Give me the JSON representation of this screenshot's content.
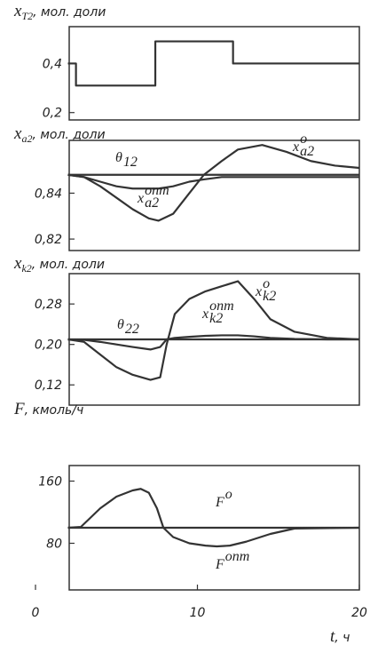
{
  "chart_data": [
    {
      "type": "line",
      "ylabel": {
        "text": "x",
        "sub": "T2",
        "unit": ", мол. доли"
      },
      "xlim": [
        0,
        20
      ],
      "ylim": [
        0.17,
        0.55
      ],
      "yticks": [
        {
          "value": 0.2,
          "label": "0,2"
        },
        {
          "value": 0.4,
          "label": "0,4"
        }
      ],
      "x": [
        2,
        2.5,
        2.5,
        7.4,
        7.4,
        12.2,
        12.2,
        20
      ],
      "series": [
        {
          "color": "#333333",
          "values": [
            0.4,
            0.4,
            0.31,
            0.31,
            0.49,
            0.49,
            0.4,
            0.4
          ]
        }
      ]
    },
    {
      "type": "line",
      "ylabel": {
        "text": "x",
        "sub": "a2",
        "unit": ", мол. доли"
      },
      "xlim": [
        0,
        20
      ],
      "ylim": [
        0.815,
        0.863
      ],
      "yticks": [
        {
          "value": 0.82,
          "label": "0,82"
        },
        {
          "value": 0.84,
          "label": "0,84"
        }
      ],
      "x": [
        2,
        3,
        4,
        5,
        6,
        7,
        7.6,
        8.5,
        9.5,
        10.4,
        11.5,
        12.5,
        14,
        15.5,
        17,
        18.5,
        20
      ],
      "series": [
        {
          "name": {
            "text": "θ",
            "sub": "12"
          },
          "color": "#333333",
          "values": [
            0.848,
            0.848,
            0.848,
            0.848,
            0.848,
            0.848,
            0.848,
            0.848,
            0.848,
            0.848,
            0.848,
            0.848,
            0.848,
            0.848,
            0.848,
            0.848,
            0.848
          ]
        },
        {
          "name": {
            "text": "x",
            "sub": "a2",
            "sup": "o"
          },
          "color": "#333333",
          "values": [
            0.848,
            0.847,
            0.843,
            0.838,
            0.833,
            0.829,
            0.828,
            0.831,
            0.84,
            0.848,
            0.854,
            0.859,
            0.861,
            0.858,
            0.854,
            0.852,
            0.851
          ]
        },
        {
          "name": {
            "text": "x",
            "sub": "a2",
            "sup": "опт"
          },
          "color": "#333333",
          "values": [
            0.848,
            0.847,
            0.845,
            0.843,
            0.842,
            0.842,
            0.842,
            0.843,
            0.845,
            0.846,
            0.847,
            0.847,
            0.847,
            0.847,
            0.847,
            0.847,
            0.847
          ]
        }
      ]
    },
    {
      "type": "line",
      "ylabel": {
        "text": "x",
        "sub": "k2",
        "unit": ", мол. доли"
      },
      "xlim": [
        0,
        20
      ],
      "ylim": [
        0.08,
        0.34
      ],
      "yticks": [
        {
          "value": 0.12,
          "label": "0,12"
        },
        {
          "value": 0.2,
          "label": "0,20"
        },
        {
          "value": 0.28,
          "label": "0,28"
        }
      ],
      "x": [
        2,
        3,
        4,
        5,
        6,
        7.1,
        7.7,
        8.1,
        8.6,
        9.5,
        10.5,
        11.5,
        12.5,
        13.5,
        14.5,
        16,
        18,
        20
      ],
      "series": [
        {
          "name": {
            "text": "θ",
            "sub": "22"
          },
          "color": "#333333",
          "values": [
            0.21,
            0.21,
            0.21,
            0.21,
            0.21,
            0.21,
            0.21,
            0.21,
            0.21,
            0.21,
            0.21,
            0.21,
            0.21,
            0.21,
            0.21,
            0.21,
            0.21,
            0.21
          ]
        },
        {
          "name": {
            "text": "x",
            "sub": "k2",
            "sup": "o"
          },
          "color": "#333333",
          "values": [
            0.21,
            0.205,
            0.18,
            0.155,
            0.14,
            0.13,
            0.135,
            0.2,
            0.26,
            0.29,
            0.305,
            0.315,
            0.325,
            0.29,
            0.25,
            0.225,
            0.213,
            0.21
          ]
        },
        {
          "name": {
            "text": "x",
            "sub": "k2",
            "sup": "опт"
          },
          "color": "#333333",
          "values": [
            0.21,
            0.209,
            0.205,
            0.2,
            0.195,
            0.19,
            0.195,
            0.21,
            0.213,
            0.215,
            0.217,
            0.218,
            0.218,
            0.216,
            0.213,
            0.211,
            0.21,
            0.21
          ]
        }
      ]
    },
    {
      "type": "line",
      "ylabel": {
        "text": "F",
        "unit": ", кмоль/ч"
      },
      "xlabel": {
        "text": "t",
        "unit": ", ч"
      },
      "xlim": [
        0,
        20
      ],
      "ylim": [
        20,
        180
      ],
      "xticks": [
        0,
        10,
        20
      ],
      "yticks": [
        80,
        160
      ],
      "x": [
        2,
        2.8,
        4,
        5,
        6,
        6.5,
        7,
        7.5,
        7.9,
        8.5,
        9.5,
        10.5,
        11.2,
        12,
        13,
        14.5,
        16,
        20
      ],
      "series": [
        {
          "name": {
            "text": "F",
            "sup": "o"
          },
          "color": "#333333",
          "values": [
            100,
            100,
            100,
            100,
            100,
            100,
            100,
            100,
            100,
            100,
            100,
            100,
            100,
            100,
            100,
            100,
            100,
            100
          ]
        },
        {
          "name": {
            "text": "F",
            "sup": "опт"
          },
          "color": "#333333",
          "values": [
            100,
            101,
            125,
            140,
            148,
            150,
            145,
            125,
            100,
            88,
            80,
            77,
            76,
            77,
            82,
            92,
            99,
            100
          ]
        }
      ]
    }
  ]
}
